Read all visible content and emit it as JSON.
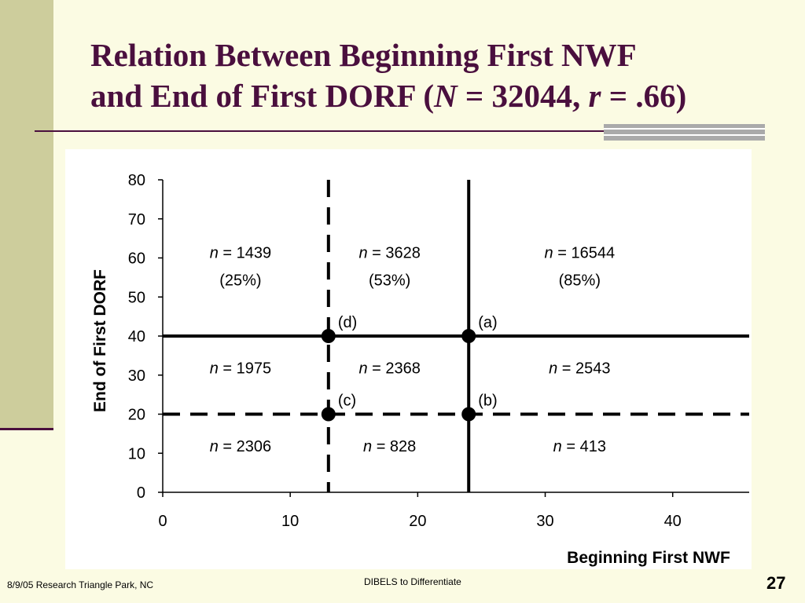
{
  "slide": {
    "title_line1": "Relation Between Beginning First NWF",
    "title_line2_prefix": "and End of First DORF (",
    "title_N": "N",
    "title_N_value": " = 32044, ",
    "title_r": "r",
    "title_r_value": " = .66)",
    "footer_left": "8/9/05 Research Triangle Park, NC",
    "footer_center": "DIBELS to Differentiate",
    "page_number": "27",
    "colors": {
      "title": "#4a0f3e",
      "background": "#fbfbe3",
      "sidebar": "#cdcd9c",
      "plot_background": "#ffffff"
    }
  },
  "chart_data": {
    "type": "scatter",
    "title": "",
    "xlabel": "Beginning First NWF",
    "ylabel": "End of First DORF",
    "xlim": [
      0,
      46
    ],
    "ylim": [
      0,
      80
    ],
    "x_ticks": [
      "0",
      "10",
      "20",
      "30",
      "40"
    ],
    "y_ticks": [
      "0",
      "10",
      "20",
      "30",
      "40",
      "50",
      "60",
      "70",
      "80"
    ],
    "grid": false,
    "cutoff_lines": [
      {
        "orientation": "vertical",
        "value": 13,
        "style": "dashed"
      },
      {
        "orientation": "vertical",
        "value": 24,
        "style": "solid"
      },
      {
        "orientation": "horizontal",
        "value": 40,
        "style": "solid"
      },
      {
        "orientation": "horizontal",
        "value": 20,
        "style": "dashed"
      }
    ],
    "points": [
      {
        "label": "(d)",
        "x": 13,
        "y": 40
      },
      {
        "label": "(a)",
        "x": 24,
        "y": 40
      },
      {
        "label": "(c)",
        "x": 13,
        "y": 20
      },
      {
        "label": "(b)",
        "x": 24,
        "y": 20
      }
    ],
    "cells": [
      {
        "x": 6.1,
        "y": 60,
        "n": "1439",
        "pct": "(25%)"
      },
      {
        "x": 17.8,
        "y": 60,
        "n": "3628",
        "pct": "(53%)"
      },
      {
        "x": 32.7,
        "y": 60,
        "n": "16544",
        "pct": "(85%)"
      },
      {
        "x": 6.1,
        "y": 30.5,
        "n": "1975",
        "pct": ""
      },
      {
        "x": 17.8,
        "y": 30.5,
        "n": "2368",
        "pct": ""
      },
      {
        "x": 32.7,
        "y": 30.5,
        "n": "2543",
        "pct": ""
      },
      {
        "x": 6.1,
        "y": 10.5,
        "n": "2306",
        "pct": ""
      },
      {
        "x": 17.8,
        "y": 10.5,
        "n": "828",
        "pct": ""
      },
      {
        "x": 32.7,
        "y": 10.5,
        "n": "413",
        "pct": ""
      }
    ],
    "n_prefix": "n",
    "n_equals": " = "
  }
}
